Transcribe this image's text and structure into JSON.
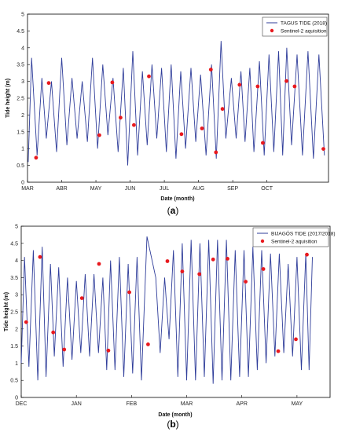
{
  "panels": [
    {
      "sublabel_open": "(",
      "sublabel_letter": "a",
      "sublabel_close": ")",
      "legend": {
        "placement": "top-right",
        "line_label": "TAGUS TIDE (2018)",
        "point_label": "Sentinel-2 aquisition"
      }
    },
    {
      "sublabel_open": "(",
      "sublabel_letter": "b",
      "sublabel_close": ")",
      "legend": {
        "placement": "top-right",
        "line_label": "BIJAGÓS TIDE (2017/2018)",
        "point_label": "Sentinel-2 aquisition"
      }
    }
  ],
  "chart_data": [
    {
      "type": "line",
      "xlabel": "Date (month)",
      "ylabel": "Tide height (m)",
      "xlim": [
        0,
        8.8
      ],
      "ylim": [
        0,
        5
      ],
      "grid": false,
      "xticks": [
        {
          "x": 0,
          "label": "MAR"
        },
        {
          "x": 1,
          "label": "ABR"
        },
        {
          "x": 2,
          "label": "MAY"
        },
        {
          "x": 3,
          "label": "JUN"
        },
        {
          "x": 4,
          "label": "JUL"
        },
        {
          "x": 5,
          "label": "AUG"
        },
        {
          "x": 6,
          "label": "SEP"
        },
        {
          "x": 7,
          "label": "OCT"
        }
      ],
      "yticks": [
        0,
        0.5,
        1,
        1.5,
        2,
        2.5,
        3,
        3.5,
        4,
        4.5,
        5
      ],
      "series": [
        {
          "name": "TAGUS TIDE (2018)",
          "kind": "line",
          "color": "#2f3d9a",
          "points": [
            [
              0.02,
              0.6
            ],
            [
              0.12,
              3.7
            ],
            [
              0.28,
              0.8
            ],
            [
              0.42,
              3.1
            ],
            [
              0.55,
              1.3
            ],
            [
              0.7,
              3.0
            ],
            [
              0.85,
              0.9
            ],
            [
              1.0,
              3.7
            ],
            [
              1.15,
              1.1
            ],
            [
              1.3,
              3.1
            ],
            [
              1.45,
              1.3
            ],
            [
              1.6,
              3.0
            ],
            [
              1.75,
              1.2
            ],
            [
              1.9,
              3.7
            ],
            [
              2.05,
              1.0
            ],
            [
              2.2,
              3.5
            ],
            [
              2.35,
              1.4
            ],
            [
              2.5,
              3.1
            ],
            [
              2.65,
              0.9
            ],
            [
              2.8,
              3.4
            ],
            [
              2.93,
              0.5
            ],
            [
              3.08,
              3.9
            ],
            [
              3.22,
              0.8
            ],
            [
              3.36,
              3.3
            ],
            [
              3.5,
              1.1
            ],
            [
              3.64,
              3.5
            ],
            [
              3.78,
              1.3
            ],
            [
              3.92,
              3.4
            ],
            [
              4.06,
              0.9
            ],
            [
              4.2,
              3.5
            ],
            [
              4.34,
              0.7
            ],
            [
              4.48,
              3.3
            ],
            [
              4.62,
              1.0
            ],
            [
              4.78,
              3.4
            ],
            [
              4.92,
              1.2
            ],
            [
              5.06,
              3.2
            ],
            [
              5.22,
              0.8
            ],
            [
              5.38,
              3.5
            ],
            [
              5.52,
              0.7
            ],
            [
              5.66,
              4.2
            ],
            [
              5.8,
              1.3
            ],
            [
              5.96,
              3.1
            ],
            [
              6.1,
              1.3
            ],
            [
              6.24,
              3.3
            ],
            [
              6.36,
              1.2
            ],
            [
              6.5,
              3.4
            ],
            [
              6.62,
              0.9
            ],
            [
              6.78,
              3.6
            ],
            [
              6.92,
              0.8
            ],
            [
              7.06,
              3.8
            ],
            [
              7.2,
              0.9
            ],
            [
              7.34,
              3.9
            ],
            [
              7.46,
              0.8
            ],
            [
              7.58,
              4.0
            ],
            [
              7.72,
              1.1
            ],
            [
              7.88,
              3.8
            ],
            [
              8.04,
              0.8
            ],
            [
              8.2,
              3.9
            ],
            [
              8.36,
              0.7
            ],
            [
              8.52,
              3.8
            ],
            [
              8.68,
              0.8
            ]
          ]
        },
        {
          "name": "Sentinel-2 aquisition",
          "kind": "scatter",
          "color": "#e8191e",
          "points": [
            [
              0.25,
              0.73
            ],
            [
              0.62,
              2.95
            ],
            [
              2.1,
              1.4
            ],
            [
              2.48,
              2.97
            ],
            [
              2.72,
              1.92
            ],
            [
              3.11,
              1.7
            ],
            [
              3.55,
              3.15
            ],
            [
              4.5,
              1.43
            ],
            [
              5.1,
              1.6
            ],
            [
              5.36,
              3.35
            ],
            [
              5.51,
              0.89
            ],
            [
              5.7,
              2.18
            ],
            [
              6.2,
              2.9
            ],
            [
              6.73,
              2.85
            ],
            [
              6.88,
              1.17
            ],
            [
              7.57,
              3.01
            ],
            [
              7.81,
              2.85
            ],
            [
              8.65,
              0.99
            ]
          ]
        }
      ]
    },
    {
      "type": "line",
      "xlabel": "Date (month)",
      "ylabel": "Tide height (m)",
      "xlim": [
        0,
        5.6
      ],
      "ylim": [
        0,
        5
      ],
      "grid": false,
      "xticks": [
        {
          "x": 0,
          "label": "DEC"
        },
        {
          "x": 1,
          "label": "JAN"
        },
        {
          "x": 2,
          "label": "FEB"
        },
        {
          "x": 3,
          "label": "MAR"
        },
        {
          "x": 4,
          "label": "APR"
        },
        {
          "x": 5,
          "label": "MAY"
        }
      ],
      "yticks": [
        0,
        0.5,
        1,
        1.5,
        2,
        2.5,
        3,
        3.5,
        4,
        4.5,
        5
      ],
      "series": [
        {
          "name": "BIJAGÓS TIDE (2017/2018)",
          "kind": "line",
          "color": "#2f3d9a",
          "points": [
            [
              0.0,
              1.0
            ],
            [
              0.06,
              4.1
            ],
            [
              0.14,
              0.9
            ],
            [
              0.22,
              4.3
            ],
            [
              0.3,
              0.5
            ],
            [
              0.38,
              4.4
            ],
            [
              0.45,
              0.6
            ],
            [
              0.53,
              3.9
            ],
            [
              0.6,
              1.2
            ],
            [
              0.68,
              3.8
            ],
            [
              0.76,
              0.9
            ],
            [
              0.84,
              3.5
            ],
            [
              0.92,
              1.1
            ],
            [
              1.0,
              3.4
            ],
            [
              1.08,
              1.3
            ],
            [
              1.16,
              3.6
            ],
            [
              1.24,
              1.2
            ],
            [
              1.32,
              3.6
            ],
            [
              1.4,
              1.3
            ],
            [
              1.48,
              3.5
            ],
            [
              1.55,
              0.8
            ],
            [
              1.62,
              4.0
            ],
            [
              1.7,
              0.8
            ],
            [
              1.78,
              4.1
            ],
            [
              1.86,
              0.6
            ],
            [
              1.94,
              3.9
            ],
            [
              2.02,
              0.7
            ],
            [
              2.1,
              4.1
            ],
            [
              2.18,
              0.5
            ],
            [
              2.28,
              4.7
            ],
            [
              2.44,
              3.5
            ],
            [
              2.52,
              1.3
            ],
            [
              2.6,
              3.5
            ],
            [
              2.68,
              1.7
            ],
            [
              2.76,
              4.3
            ],
            [
              2.84,
              0.6
            ],
            [
              2.92,
              4.5
            ],
            [
              3.0,
              0.5
            ],
            [
              3.08,
              4.6
            ],
            [
              3.16,
              0.5
            ],
            [
              3.24,
              4.5
            ],
            [
              3.32,
              0.6
            ],
            [
              3.4,
              4.6
            ],
            [
              3.48,
              0.4
            ],
            [
              3.56,
              4.6
            ],
            [
              3.64,
              0.5
            ],
            [
              3.72,
              4.6
            ],
            [
              3.8,
              0.5
            ],
            [
              3.88,
              4.3
            ],
            [
              3.96,
              0.6
            ],
            [
              4.04,
              4.3
            ],
            [
              4.12,
              0.6
            ],
            [
              4.2,
              4.4
            ],
            [
              4.28,
              0.8
            ],
            [
              4.36,
              4.3
            ],
            [
              4.44,
              1.0
            ],
            [
              4.52,
              4.2
            ],
            [
              4.6,
              1.2
            ],
            [
              4.68,
              4.2
            ],
            [
              4.76,
              1.3
            ],
            [
              4.84,
              3.9
            ],
            [
              4.92,
              1.2
            ],
            [
              5.0,
              4.1
            ],
            [
              5.08,
              0.8
            ],
            [
              5.16,
              4.2
            ],
            [
              5.22,
              0.8
            ],
            [
              5.28,
              4.1
            ]
          ]
        },
        {
          "name": "Sentinel-2 aquisition",
          "kind": "scatter",
          "color": "#e8191e",
          "points": [
            [
              0.09,
              2.2
            ],
            [
              0.34,
              4.1
            ],
            [
              0.58,
              1.9
            ],
            [
              0.78,
              1.4
            ],
            [
              1.1,
              2.9
            ],
            [
              1.41,
              3.9
            ],
            [
              1.58,
              1.37
            ],
            [
              1.96,
              3.07
            ],
            [
              2.3,
              1.55
            ],
            [
              2.65,
              3.98
            ],
            [
              2.92,
              3.68
            ],
            [
              3.23,
              3.6
            ],
            [
              3.48,
              4.03
            ],
            [
              3.74,
              4.05
            ],
            [
              4.07,
              3.38
            ],
            [
              4.39,
              3.75
            ],
            [
              4.66,
              1.35
            ],
            [
              4.98,
              1.7
            ],
            [
              5.18,
              4.17
            ]
          ]
        }
      ]
    }
  ]
}
